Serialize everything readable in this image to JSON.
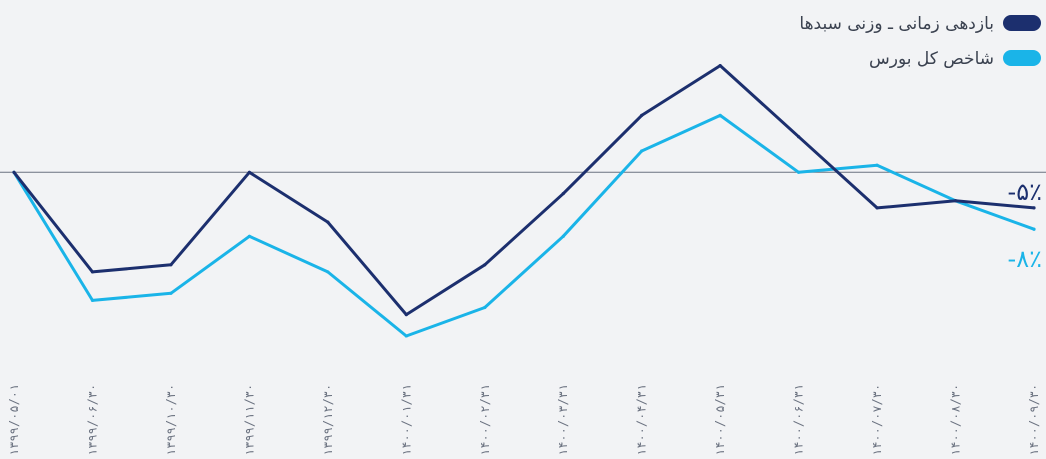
{
  "chart_data": {
    "type": "line",
    "title": "",
    "xlabel": "",
    "ylabel": "",
    "baseline_value": 0,
    "ylim": [
      -32,
      20
    ],
    "grid": false,
    "legend_position": "top-right",
    "x": [
      "۱۳۹۹/۰۵/۰۱",
      "۱۳۹۹/۰۶/۳۰",
      "۱۳۹۹/۱۰/۳۰",
      "۱۳۹۹/۱۱/۳۰",
      "۱۳۹۹/۱۲/۳۰",
      "۱۴۰۰/۰۱/۳۱",
      "۱۴۰۰/۰۲/۳۱",
      "۱۴۰۰/۰۳/۳۱",
      "۱۴۰۰/۰۴/۳۱",
      "۱۴۰۰/۰۵/۳۱",
      "۱۴۰۰/۰۶/۳۱",
      "۱۴۰۰/۰۷/۳۰",
      "۱۴۰۰/۰۸/۳۰",
      "۱۴۰۰/۰۹/۳۰"
    ],
    "series": [
      {
        "name": "بازدهی زمانی ـ وزنی سبدها",
        "color": "#1c2f6e",
        "end_label": "-۵٪",
        "values": [
          0,
          -14,
          -13,
          0,
          -7,
          -20,
          -13,
          -3,
          8,
          15,
          5,
          -5,
          -4,
          -5
        ]
      },
      {
        "name": "شاخص کل بورس",
        "color": "#1ab4e8",
        "end_label": "-۸٪",
        "values": [
          0,
          -18,
          -17,
          -9,
          -14,
          -23,
          -19,
          -9,
          3,
          8,
          0,
          1,
          -4,
          -8
        ]
      }
    ]
  },
  "colors": {
    "background": "#f2f3f5",
    "baseline": "#6b7280"
  }
}
